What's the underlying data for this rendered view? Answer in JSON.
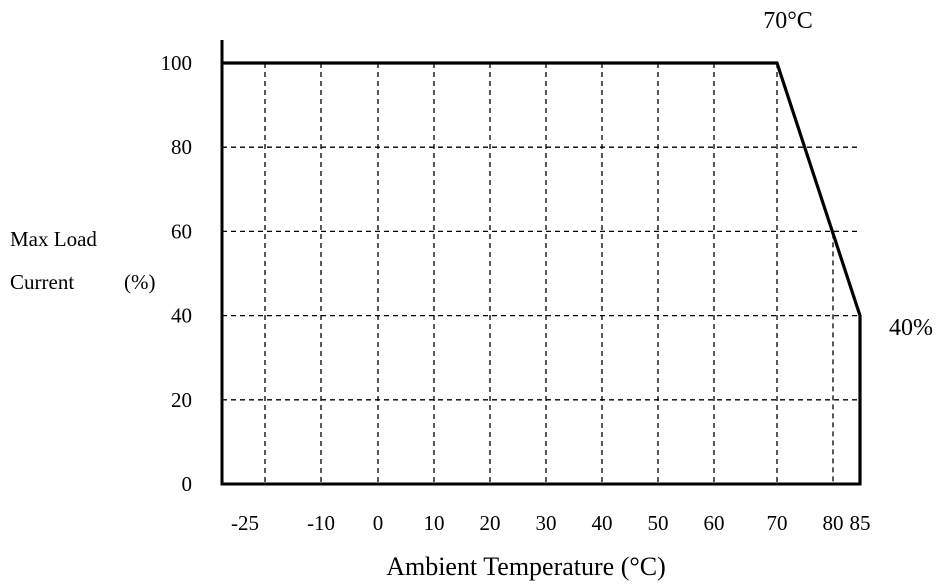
{
  "chart_data": {
    "type": "line",
    "title": "",
    "xlabel": "Ambient Temperature (°C)",
    "ylabel_line1": "Max Load",
    "ylabel_line2": "Current",
    "ylabel_unit": "(%)",
    "x_ticks": [
      "-25",
      "-10",
      "0",
      "10",
      "20",
      "30",
      "40",
      "50",
      "60",
      "70",
      "80",
      "85"
    ],
    "y_ticks": [
      "0",
      "20",
      "40",
      "60",
      "80",
      "100"
    ],
    "ylim": [
      0,
      100
    ],
    "grid": true,
    "series": [
      {
        "x": [
          "-25",
          "70",
          "85",
          "85"
        ],
        "y": [
          100,
          100,
          40,
          0
        ]
      }
    ],
    "annotations": {
      "knee": "70°C",
      "end": "40%"
    }
  }
}
